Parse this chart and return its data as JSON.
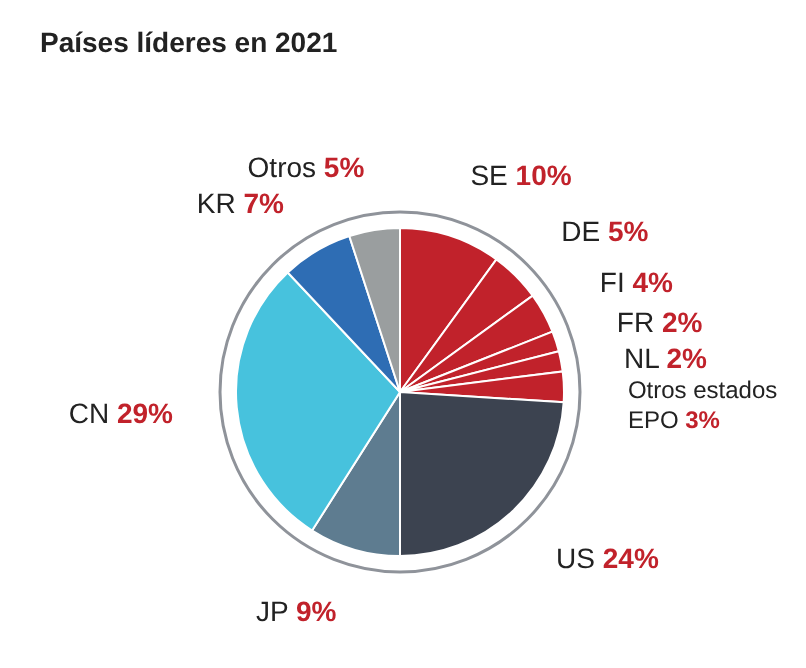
{
  "chart_data": {
    "type": "pie",
    "title": "Países líderes en 2021",
    "categories": [
      "SE",
      "DE",
      "FI",
      "FR",
      "NL",
      "Otros estados EPO",
      "US",
      "JP",
      "CN",
      "KR",
      "Otros"
    ],
    "values": [
      10,
      5,
      4,
      2,
      2,
      3,
      24,
      9,
      29,
      7,
      5
    ],
    "value_labels": [
      "10%",
      "5%",
      "4%",
      "2%",
      "2%",
      "3%",
      "24%",
      "9%",
      "29%",
      "7%",
      "5%"
    ],
    "colors": [
      "#c1222b",
      "#c1222b",
      "#c1222b",
      "#c1222b",
      "#c1222b",
      "#c1222b",
      "#3c4350",
      "#5e7c90",
      "#47c2dd",
      "#2e6db4",
      "#9a9e9f"
    ]
  }
}
